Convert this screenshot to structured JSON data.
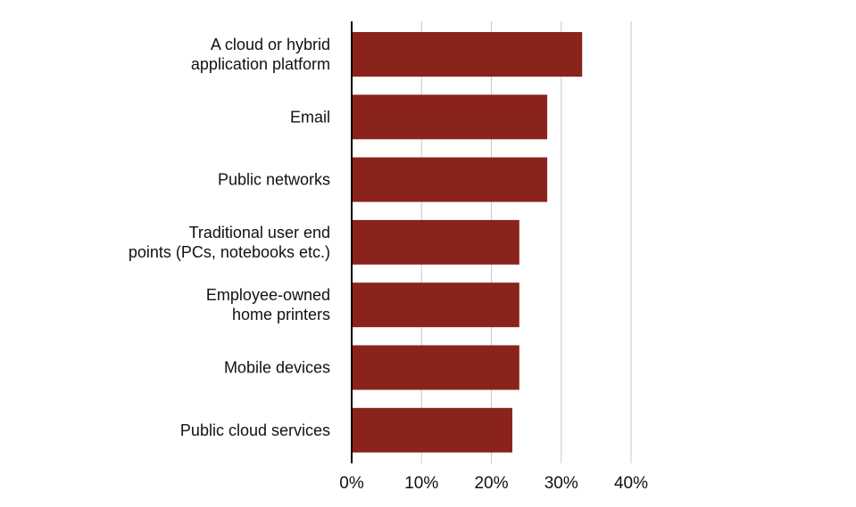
{
  "chart_data": {
    "type": "bar",
    "orientation": "horizontal",
    "title": "",
    "xlabel": "",
    "ylabel": "",
    "categories": [
      [
        "A cloud or hybrid",
        "application platform"
      ],
      [
        "Email"
      ],
      [
        "Public networks"
      ],
      [
        "Traditional user end",
        "points (PCs, notebooks etc.)"
      ],
      [
        "Employee-owned",
        "home printers"
      ],
      [
        "Mobile devices"
      ],
      [
        "Public cloud services"
      ]
    ],
    "values": [
      33,
      28,
      28,
      24,
      24,
      24,
      23
    ],
    "xlim": [
      0,
      40
    ],
    "xticks": [
      0,
      10,
      20,
      30,
      40
    ],
    "xtick_labels": [
      "0%",
      "10%",
      "20%",
      "30%",
      "40%"
    ],
    "grid": "vertical",
    "bar_color": "#8a231c",
    "legend": "none"
  }
}
